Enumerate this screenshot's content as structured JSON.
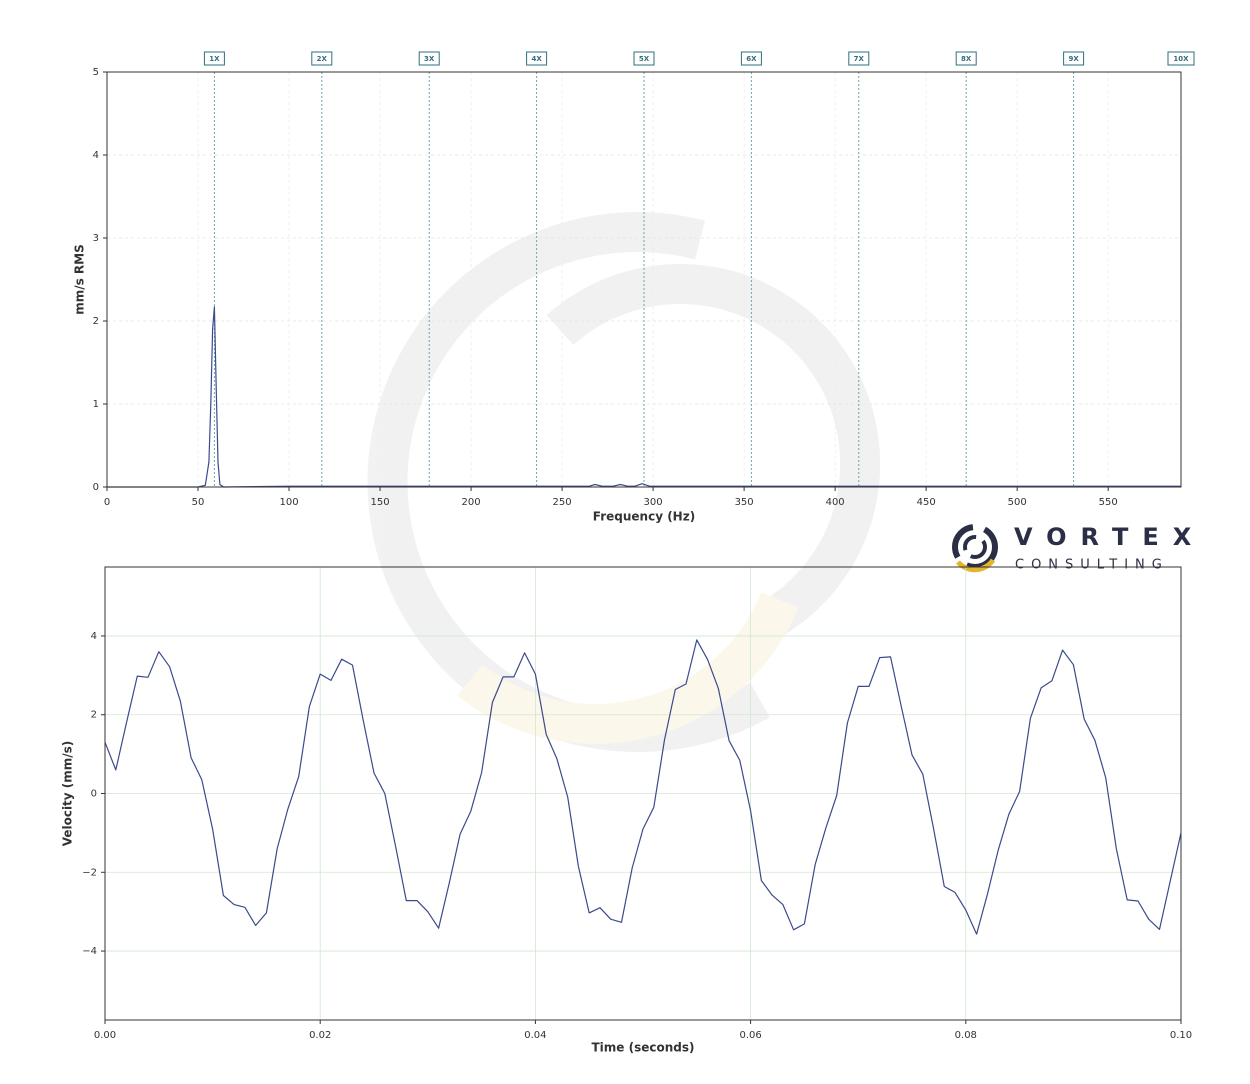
{
  "chart_data": [
    {
      "type": "line",
      "y_label": "mm/s RMS",
      "x_label": "Frequency (Hz)",
      "x": [
        0,
        50,
        54,
        56,
        57,
        58,
        59,
        60,
        61,
        62,
        64,
        100,
        150,
        200,
        250,
        265,
        268,
        272,
        278,
        282,
        286,
        290,
        294,
        298,
        350,
        400,
        450,
        500,
        550,
        590
      ],
      "values": [
        0,
        0,
        0.02,
        0.3,
        1.0,
        1.9,
        2.17,
        1.2,
        0.3,
        0.03,
        0,
        0.01,
        0.01,
        0.01,
        0.01,
        0.01,
        0.03,
        0.01,
        0.01,
        0.03,
        0.01,
        0.01,
        0.04,
        0.01,
        0.01,
        0.01,
        0.01,
        0.01,
        0.01,
        0.01
      ],
      "color": "#3b4a8c",
      "xlim": [
        0,
        590
      ],
      "ylim": [
        0,
        5
      ],
      "xticks": [
        0,
        50,
        100,
        150,
        200,
        250,
        300,
        350,
        400,
        450,
        500,
        550
      ],
      "yticks": [
        0,
        1,
        2,
        3,
        4,
        5
      ],
      "grid": true,
      "harmonics": [
        {
          "label": "1X",
          "x": 59
        },
        {
          "label": "2X",
          "x": 118
        },
        {
          "label": "3X",
          "x": 177
        },
        {
          "label": "4X",
          "x": 236
        },
        {
          "label": "5X",
          "x": 295
        },
        {
          "label": "6X",
          "x": 354
        },
        {
          "label": "7X",
          "x": 413
        },
        {
          "label": "8X",
          "x": 472
        },
        {
          "label": "9X",
          "x": 531
        },
        {
          "label": "10X",
          "x": 590
        }
      ]
    },
    {
      "type": "line",
      "y_label": "Velocity (mm/s)",
      "x_label": "Time (seconds)",
      "x": [
        0,
        0.001,
        0.002,
        0.003,
        0.004,
        0.005,
        0.006,
        0.007,
        0.008,
        0.009,
        0.01,
        0.011,
        0.012,
        0.013,
        0.014,
        0.015,
        0.016,
        0.017,
        0.018,
        0.019,
        0.02,
        0.021,
        0.022,
        0.023,
        0.024,
        0.025,
        0.026,
        0.027,
        0.028,
        0.029,
        0.03,
        0.031,
        0.032,
        0.033,
        0.034,
        0.035,
        0.036,
        0.037,
        0.038,
        0.039,
        0.04,
        0.041,
        0.042,
        0.043,
        0.044,
        0.045,
        0.046,
        0.047,
        0.048,
        0.049,
        0.05,
        0.051,
        0.052,
        0.053,
        0.054,
        0.055,
        0.056,
        0.057,
        0.058,
        0.059,
        0.06,
        0.061,
        0.062,
        0.063,
        0.064,
        0.065,
        0.066,
        0.067,
        0.068,
        0.069,
        0.07,
        0.071,
        0.072,
        0.073,
        0.074,
        0.075,
        0.076,
        0.077,
        0.078,
        0.079,
        0.08,
        0.081,
        0.082,
        0.083,
        0.084,
        0.085,
        0.086,
        0.087,
        0.088,
        0.089,
        0.09,
        0.091,
        0.092,
        0.093,
        0.094,
        0.095,
        0.096,
        0.097,
        0.098,
        0.099,
        0.1
      ],
      "values": [
        1.3,
        0.6,
        1.8,
        2.98,
        2.95,
        3.6,
        3.22,
        2.35,
        0.91,
        0.35,
        -0.9,
        -2.59,
        -2.82,
        -2.89,
        -3.35,
        -3.03,
        -1.4,
        -0.39,
        0.43,
        2.21,
        3.03,
        2.87,
        3.41,
        3.26,
        1.86,
        0.52,
        0.0,
        -1.33,
        -2.72,
        -2.72,
        -3.0,
        -3.42,
        -2.27,
        -1.03,
        -0.45,
        0.53,
        2.31,
        2.96,
        2.96,
        3.57,
        3.03,
        1.5,
        0.88,
        -0.09,
        -1.85,
        -3.03,
        -2.9,
        -3.19,
        -3.27,
        -1.89,
        -0.9,
        -0.35,
        1.36,
        2.64,
        2.78,
        3.9,
        3.4,
        2.67,
        1.34,
        0.84,
        -0.44,
        -2.21,
        -2.58,
        -2.82,
        -3.46,
        -3.31,
        -1.8,
        -0.87,
        -0.05,
        1.79,
        2.72,
        2.72,
        3.45,
        3.47,
        2.22,
        0.98,
        0.49,
        -0.88,
        -2.36,
        -2.51,
        -2.96,
        -3.57,
        -2.57,
        -1.45,
        -0.53,
        0.05,
        1.91,
        2.68,
        2.86,
        3.64,
        3.27,
        1.89,
        1.35,
        0.4,
        -1.41,
        -2.7,
        -2.73,
        -3.19,
        -3.45,
        -2.23,
        -1.0
      ],
      "color": "#3b4a8c",
      "xlim": [
        0,
        0.1
      ],
      "ylim": [
        -5.75,
        5.75
      ],
      "xticks": [
        {
          "value": 0,
          "label": "0.00"
        },
        {
          "value": 0.02,
          "label": "0.02"
        },
        {
          "value": 0.04,
          "label": "0.04"
        },
        {
          "value": 0.06,
          "label": "0.06"
        },
        {
          "value": 0.08,
          "label": "0.08"
        },
        {
          "value": 0.1,
          "label": "0.10"
        }
      ],
      "yticks": [
        {
          "value": -4,
          "label": "−4"
        },
        {
          "value": -2,
          "label": "−2"
        },
        0,
        2,
        4
      ],
      "grid": true
    }
  ],
  "brand": {
    "name": "VORTEX",
    "tagline": "CONSULTING"
  }
}
